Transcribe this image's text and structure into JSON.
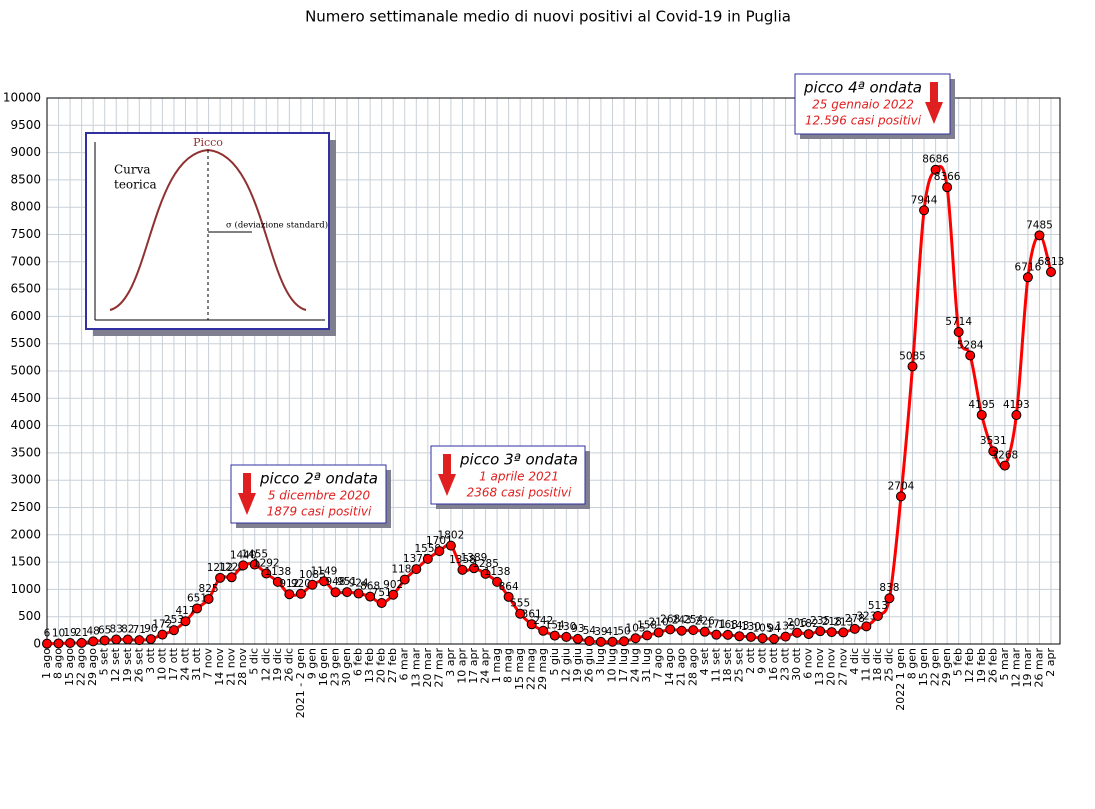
{
  "chart_data": {
    "type": "line",
    "title": "Numero settimanale medio di nuovi positivi al Covid-19 in Puglia",
    "categories": [
      "1 ago",
      "8 ago",
      "15 ago",
      "22 ago",
      "29 ago",
      "5 set",
      "12 set",
      "19 set",
      "26 set",
      "3 ott",
      "10 ott",
      "17 ott",
      "24 ott",
      "31 ott",
      "7 nov",
      "14 nov",
      "21 nov",
      "28 nov",
      "5 dic",
      "12 dic",
      "19 dic",
      "26 dic",
      "2021 - 2 gen",
      "9 gen",
      "16 gen",
      "23 gen",
      "30 gen",
      "6 feb",
      "13 feb",
      "20 feb",
      "27 feb",
      "6 mar",
      "13 mar",
      "20 mar",
      "27 mar",
      "3 apr",
      "10 apr",
      "17 apr",
      "24 apr",
      "1 mag",
      "8 mag",
      "15 mag",
      "22 mag",
      "29 mag",
      "5 giu",
      "12 giu",
      "19 giu",
      "26 giu",
      "3 lug",
      "10 lug",
      "17 lug",
      "24 lug",
      "31 lug",
      "7 ago",
      "14 ago",
      "21 ago",
      "28 ago",
      "4 set",
      "11 set",
      "18 set",
      "25 set",
      "2 ott",
      "9 ott",
      "16 ott",
      "23 ott",
      "30 ott",
      "6 nov",
      "13 nov",
      "20 nov",
      "27 nov",
      "4 dic",
      "11 dic",
      "18 dic",
      "25 dic",
      "2022 1 gen",
      "8 gen",
      "15 gen",
      "22 gen",
      "29 gen",
      "5 feb",
      "12 feb",
      "19 feb",
      "26 feb",
      "5 mar",
      "12 mar",
      "19 mar",
      "26 mar",
      "2 apr"
    ],
    "series": [
      {
        "name": "nuovi positivi",
        "color": "#ff0000",
        "values": [
          6,
          10,
          19,
          21,
          48,
          65,
          83,
          82,
          71,
          90,
          172,
          253,
          417,
          651,
          825,
          1212,
          1222,
          1440,
          1455,
          1292,
          1138,
          912,
          920,
          1085,
          1149,
          948,
          951,
          924,
          868,
          751,
          902,
          1180,
          1371,
          1559,
          1701,
          1802,
          1358,
          1389,
          1285,
          1138,
          864,
          555,
          361,
          242,
          154,
          130,
          93,
          54,
          39,
          41,
          50,
          105,
          158,
          210,
          268,
          243,
          254,
          226,
          171,
          168,
          143,
          130,
          105,
          94,
          135,
          206,
          182,
          235,
          218,
          213,
          278,
          323,
          513,
          838,
          2704,
          5085,
          7944,
          8686,
          8366,
          5714,
          5284,
          4195,
          3531,
          3268,
          4193,
          6716,
          7485,
          6813
        ]
      }
    ],
    "ylim": [
      0,
      10000
    ],
    "yticks": [
      0,
      500,
      1000,
      1500,
      2000,
      2500,
      3000,
      3500,
      4000,
      4500,
      5000,
      5500,
      6000,
      6500,
      7000,
      7500,
      8000,
      8500,
      9000,
      9500,
      10000
    ],
    "grid": true,
    "annotations": [
      {
        "title": "picco 2ª ondata",
        "date": "5 dicembre 2020",
        "cases": "1879 casi positivi"
      },
      {
        "title": "picco 3ª ondata",
        "date": "1 aprile 2021",
        "cases": "2368 casi positivi"
      },
      {
        "title": "picco 4ª ondata",
        "date": "25 gennaio 2022",
        "cases": "12.596 casi positivi"
      }
    ],
    "inset": {
      "peak": "Picco",
      "curve": [
        "Curva",
        "teorica"
      ],
      "sigma": "σ  (deviazione standard)"
    }
  }
}
